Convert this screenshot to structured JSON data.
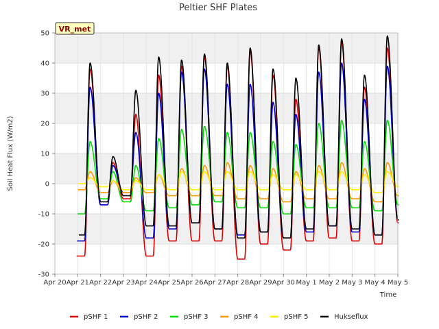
{
  "chart_data": {
    "type": "line",
    "title": "Peltier SHF Plates",
    "xlabel": "Time",
    "ylabel": "Soil Heat Flux (W/m2)",
    "badge": "VR_met",
    "ylim": [
      -30,
      50
    ],
    "yticks": [
      -30,
      -20,
      -10,
      0,
      10,
      20,
      30,
      40,
      50
    ],
    "xlim": [
      0,
      15
    ],
    "xticks": [
      0,
      1,
      2,
      3,
      4,
      5,
      6,
      7,
      8,
      9,
      10,
      11,
      12,
      13,
      14,
      15
    ],
    "xtick_labels": [
      "Apr 20",
      "Apr 21",
      "Apr 22",
      "Apr 23",
      "Apr 24",
      "Apr 25",
      "Apr 26",
      "Apr 27",
      "Apr 28",
      "Apr 29",
      "Apr 30",
      "May 1",
      "May 2",
      "May 3",
      "May 4",
      "May 5"
    ],
    "grid": true,
    "legend_position": "bottom",
    "day_start": 1,
    "series": [
      {
        "name": "pSHF 1",
        "color": "#dd0000",
        "daily_max": [
          38,
          7,
          23,
          36,
          39,
          42,
          39,
          44,
          36,
          28,
          45,
          47,
          32,
          45
        ],
        "daily_min": [
          -24,
          -7,
          -5,
          -24,
          -19,
          -19,
          -19,
          -25,
          -20,
          -22,
          -19,
          -18,
          -19,
          -20,
          -13
        ]
      },
      {
        "name": "pSHF 2",
        "color": "#0000cc",
        "daily_max": [
          32,
          6,
          17,
          30,
          37,
          38,
          33,
          33,
          27,
          23,
          37,
          40,
          28,
          39
        ],
        "daily_min": [
          -19,
          -7,
          -3,
          -18,
          -15,
          -13,
          -15,
          -17,
          -16,
          -18,
          -16,
          -14,
          -16,
          -17,
          -12
        ]
      },
      {
        "name": "pSHF 3",
        "color": "#00dd00",
        "daily_max": [
          14,
          4,
          6,
          15,
          18,
          19,
          17,
          17,
          14,
          13,
          20,
          21,
          14,
          21
        ],
        "daily_min": [
          -10,
          -5,
          -6,
          -9,
          -8,
          -7,
          -6,
          -8,
          -8,
          -10,
          -8,
          -8,
          -8,
          -9,
          -7
        ]
      },
      {
        "name": "pSHF 4",
        "color": "#ff9900",
        "daily_max": [
          4,
          1,
          2,
          3,
          5,
          6,
          7,
          6,
          5,
          4,
          6,
          7,
          5,
          7
        ],
        "daily_min": [
          -2,
          -3,
          -3,
          -3,
          -4,
          -4,
          -4,
          -5,
          -5,
          -6,
          -5,
          -5,
          -5,
          -6,
          -4
        ]
      },
      {
        "name": "pSHF 5",
        "color": "#ffee00",
        "daily_max": [
          2,
          1,
          1,
          3,
          4,
          4,
          4,
          4,
          3,
          3,
          4,
          4,
          3,
          4
        ],
        "daily_min": [
          0,
          -1,
          -2,
          -2,
          -2,
          -2,
          -2,
          -2,
          -2,
          -2,
          -2,
          -2,
          -2,
          -3,
          -1
        ]
      },
      {
        "name": "Hukseflux",
        "color": "#000000",
        "daily_max": [
          40,
          9,
          31,
          42,
          41,
          43,
          40,
          45,
          38,
          35,
          46,
          48,
          36,
          49
        ],
        "daily_min": [
          -17,
          -6,
          -4,
          -14,
          -14,
          -13,
          -15,
          -18,
          -16,
          -18,
          -15,
          -14,
          -15,
          -17,
          -12
        ]
      }
    ]
  }
}
